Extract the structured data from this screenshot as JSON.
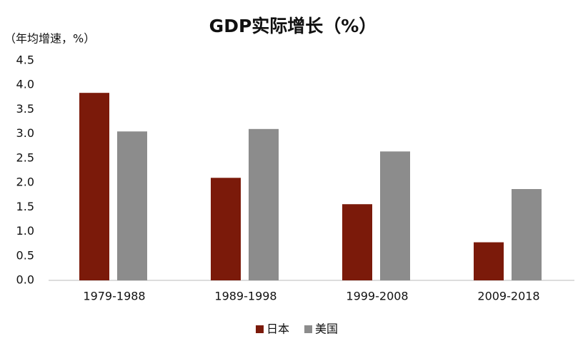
{
  "chart_data": {
    "type": "bar",
    "title": "GDP实际增长（%）",
    "y_label": "（年均增速，%）",
    "categories": [
      "1979-1988",
      "1989-1998",
      "1999-2008",
      "2009-2018"
    ],
    "series": [
      {
        "name": "日本",
        "color": "#7b1a0a",
        "values": [
          3.84,
          2.1,
          1.56,
          0.78
        ]
      },
      {
        "name": "美国",
        "color": "#8c8c8c",
        "values": [
          3.05,
          3.1,
          2.64,
          1.87
        ]
      }
    ],
    "ylim": [
      0,
      4.5
    ],
    "yticks": [
      {
        "value": 0,
        "label": "0.0"
      },
      0.5,
      {
        "value": 1,
        "label": "1.0"
      },
      1.5,
      {
        "value": 2,
        "label": "2.0"
      },
      2.5,
      {
        "value": 3,
        "label": "3.0"
      },
      3.5,
      {
        "value": 4,
        "label": "4.0"
      },
      4.5
    ],
    "grid": false,
    "legend": "bottom"
  }
}
